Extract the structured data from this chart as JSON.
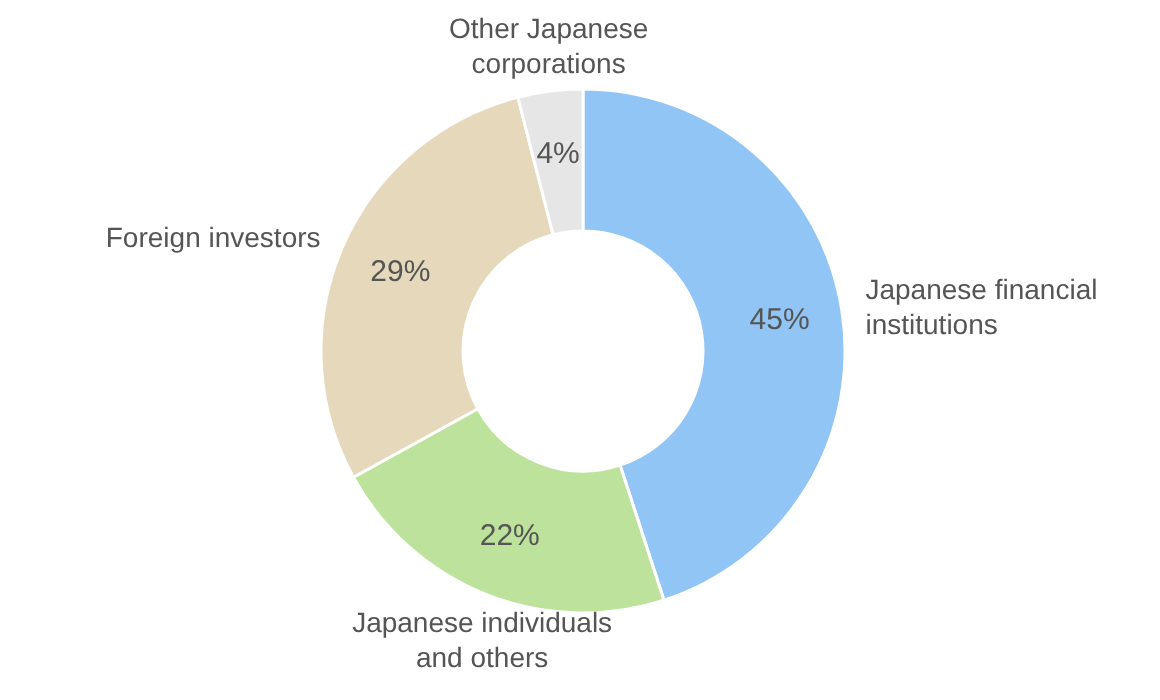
{
  "chart_data": {
    "type": "donut",
    "categories": [
      "Japanese financial institutions",
      "Japanese individuals and others",
      "Foreign investors",
      "Other Japanese corporations"
    ],
    "values": [
      45,
      22,
      29,
      4
    ],
    "colors": [
      "#90c5f5",
      "#bde29b",
      "#e6d9bb",
      "#e6e6e6"
    ],
    "value_labels": [
      "45%",
      "22%",
      "29%",
      "4%"
    ]
  }
}
